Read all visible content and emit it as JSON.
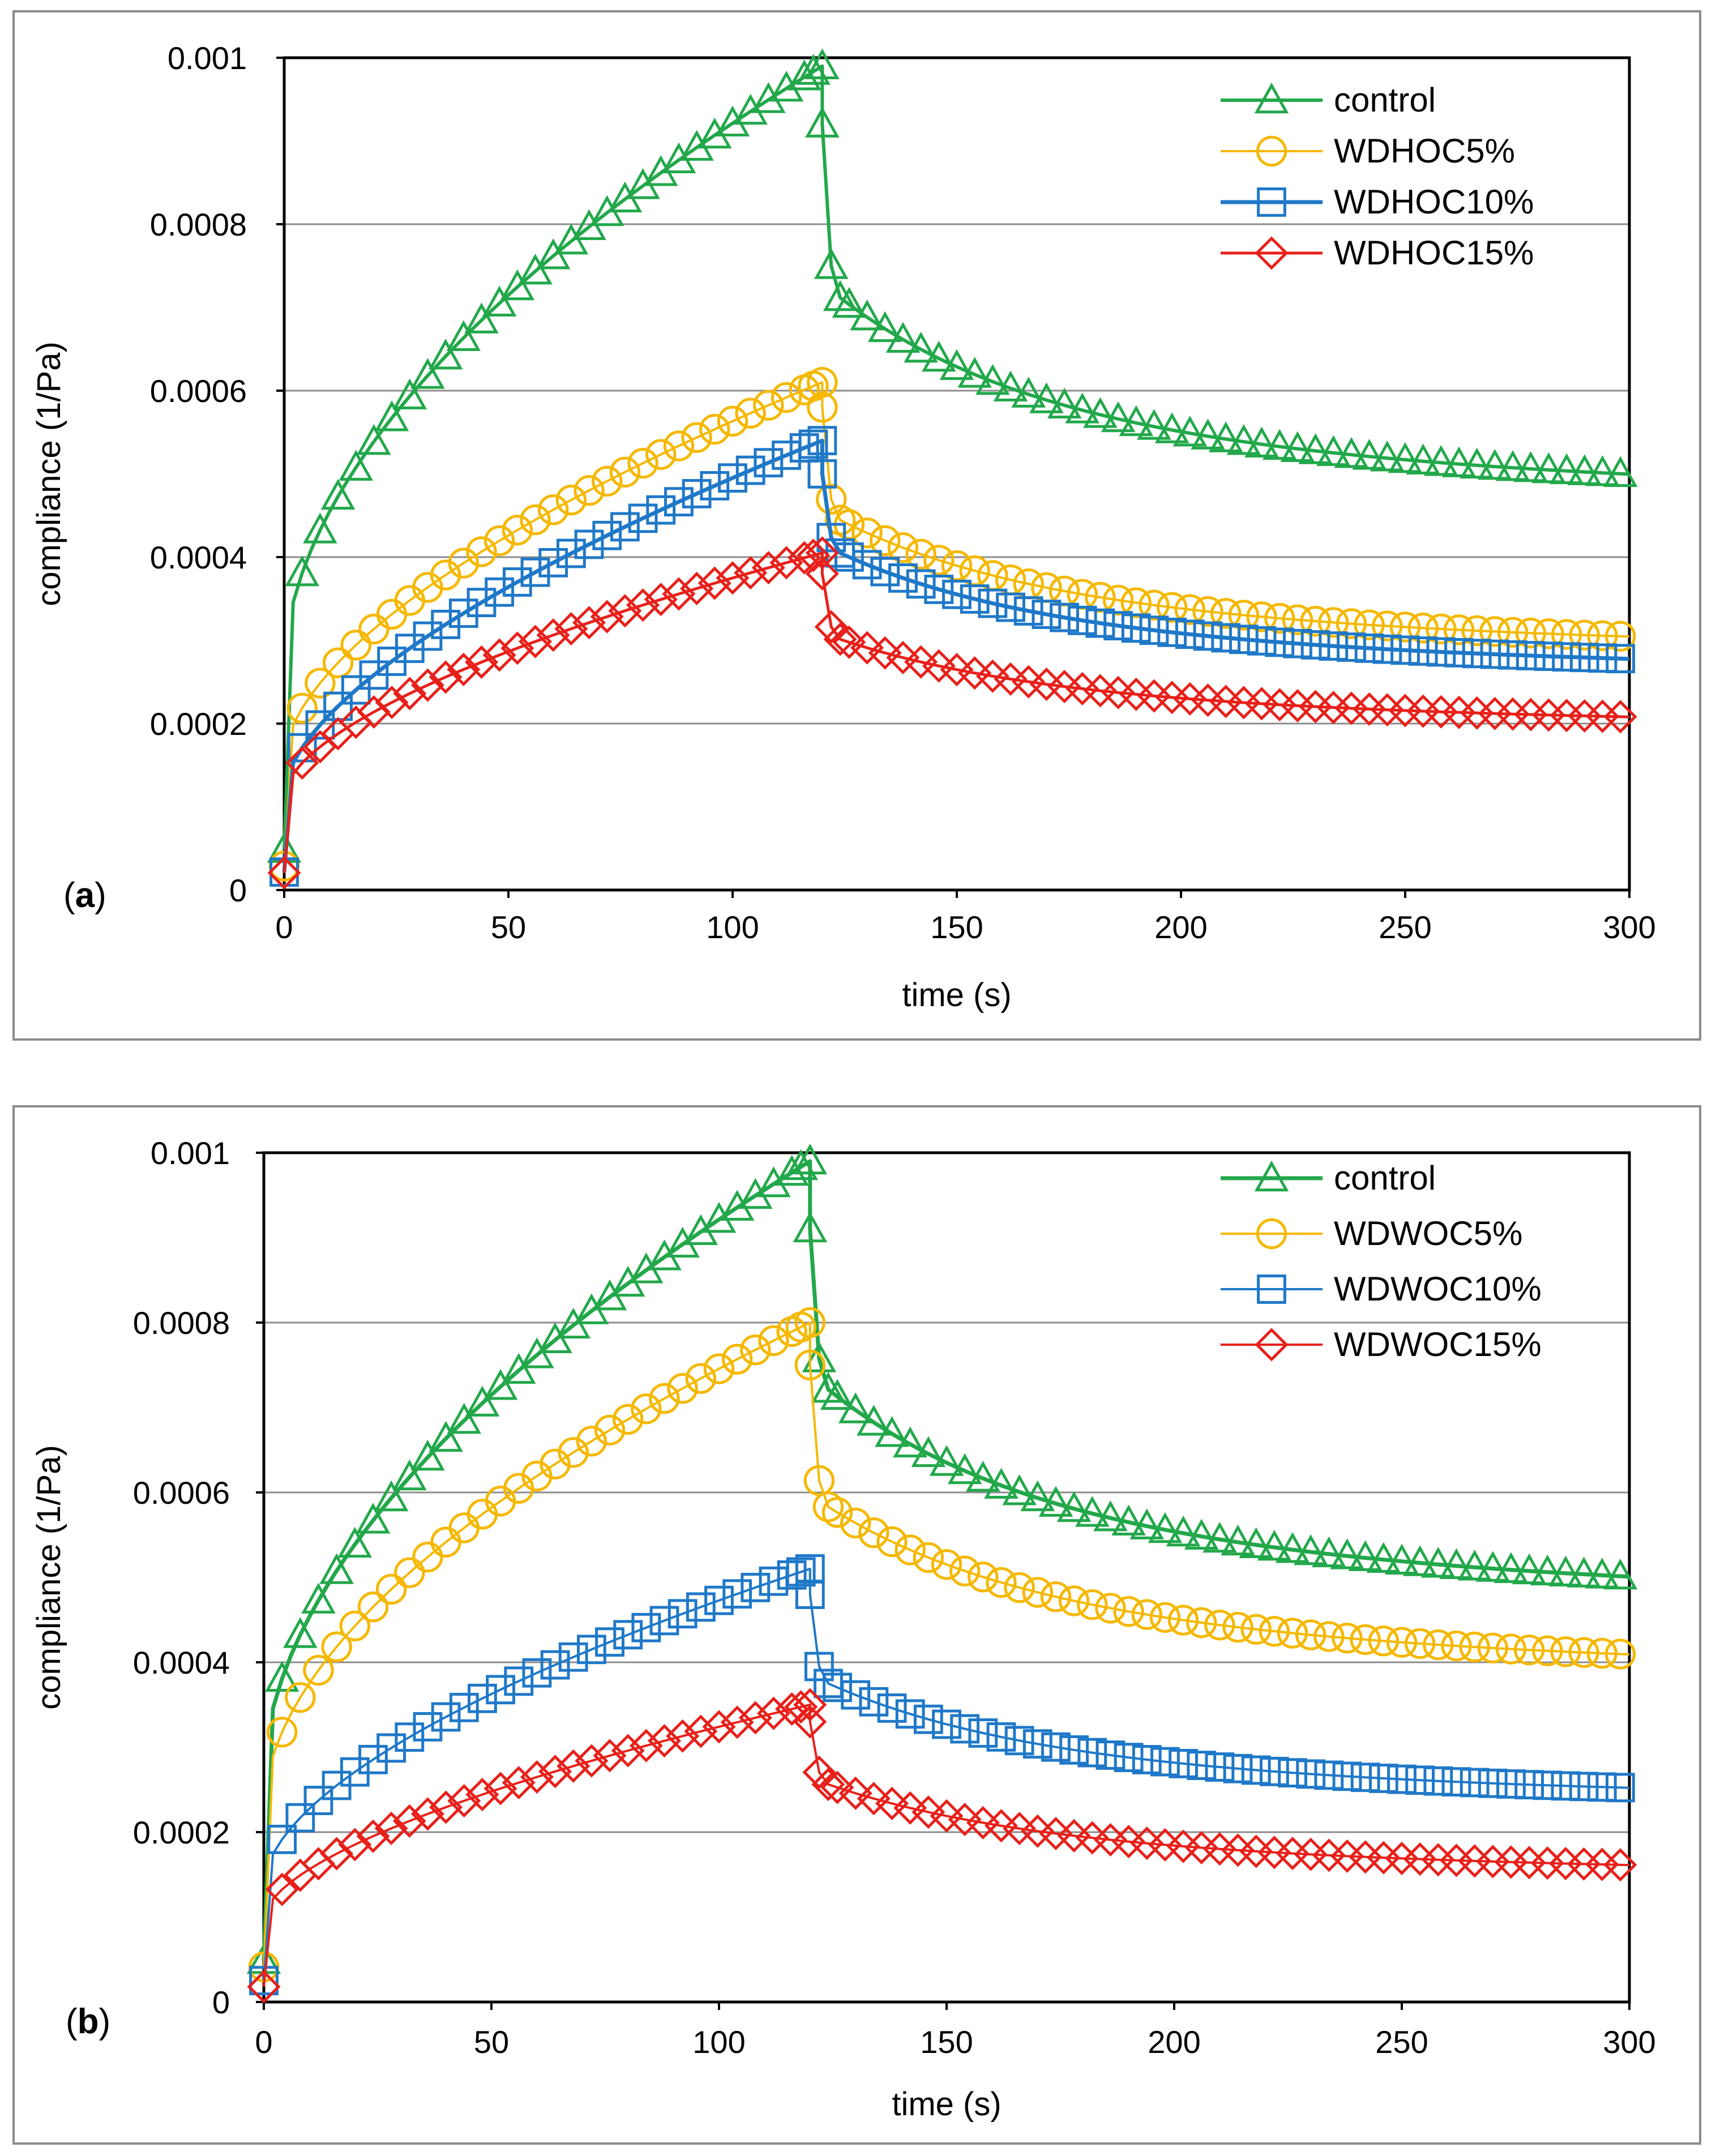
{
  "chart_data": [
    {
      "type": "line",
      "panel_label": "a",
      "xlabel": "time (s)",
      "ylabel": "compliance (1/Pa)",
      "xlim": [
        0,
        300
      ],
      "ylim": [
        0,
        0.001
      ],
      "x_ticks": [
        "0",
        "50",
        "100",
        "150",
        "200",
        "250",
        "300"
      ],
      "y_ticks": [
        "0",
        "0.0002",
        "0.0004",
        "0.0006",
        "0.0008",
        "0.001"
      ],
      "grid": "horizontal",
      "legend_position": "top-right",
      "series": [
        {
          "name": "control",
          "color": "#22a84a",
          "marker": "triangle",
          "line_width": 6,
          "creep": {
            "j0": 0.00027,
            "jend": 0.00099,
            "shape": 0.55
          },
          "recovery": {
            "jstart": 0.00092,
            "drop": 0.00072,
            "jend": 0.00047,
            "tau": 40
          }
        },
        {
          "name": "WDHOC5%",
          "color": "#f5b800",
          "marker": "circle",
          "line_width": 4,
          "creep": {
            "j0": 0.00016,
            "jend": 0.00061,
            "shape": 0.6
          },
          "recovery": {
            "jstart": 0.00058,
            "drop": 0.00045,
            "jend": 0.000285,
            "tau": 40
          }
        },
        {
          "name": "WDHOC10%",
          "color": "#1f78c8",
          "marker": "square",
          "line_width": 7,
          "creep": {
            "j0": 0.00012,
            "jend": 0.00054,
            "shape": 0.62
          },
          "recovery": {
            "jstart": 0.0005,
            "drop": 0.00041,
            "jend": 0.00026,
            "tau": 40
          }
        },
        {
          "name": "WDHOC15%",
          "color": "#e8201a",
          "marker": "diamond",
          "line_width": 5,
          "creep": {
            "j0": 0.000115,
            "jend": 0.000405,
            "shape": 0.6
          },
          "recovery": {
            "jstart": 0.00038,
            "drop": 0.000305,
            "jend": 0.000195,
            "tau": 40
          }
        }
      ]
    },
    {
      "type": "line",
      "panel_label": "b",
      "xlabel": "time (s)",
      "ylabel": "compliance (1/Pa)",
      "xlim": [
        0,
        300
      ],
      "ylim": [
        0,
        0.001
      ],
      "x_ticks": [
        "0",
        "50",
        "100",
        "150",
        "200",
        "250",
        "300"
      ],
      "y_ticks": [
        "0",
        "0.0002",
        "0.0004",
        "0.0006",
        "0.0008",
        "0.001"
      ],
      "grid": "horizontal",
      "legend_position": "top-right",
      "series": [
        {
          "name": "control",
          "color": "#22a84a",
          "marker": "triangle",
          "line_width": 7,
          "creep": {
            "j0": 0.00027,
            "jend": 0.00099,
            "shape": 0.55
          },
          "recovery": {
            "jstart": 0.00091,
            "drop": 0.00073,
            "jend": 0.00047,
            "tau": 40
          }
        },
        {
          "name": "WDWOC5%",
          "color": "#f5b800",
          "marker": "circle",
          "line_width": 4,
          "creep": {
            "j0": 0.00023,
            "jend": 0.0008,
            "shape": 0.55
          },
          "recovery": {
            "jstart": 0.00075,
            "drop": 0.00059,
            "jend": 0.000385,
            "tau": 40
          }
        },
        {
          "name": "WDWOC10%",
          "color": "#1f78c8",
          "marker": "square",
          "line_width": 4,
          "creep": {
            "j0": 0.00014,
            "jend": 0.00051,
            "shape": 0.58
          },
          "recovery": {
            "jstart": 0.00048,
            "drop": 0.00038,
            "jend": 0.000235,
            "tau": 40
          }
        },
        {
          "name": "WDWOC15%",
          "color": "#e8201a",
          "marker": "diamond",
          "line_width": 4,
          "creep": {
            "j0": 0.0001,
            "jend": 0.00035,
            "shape": 0.6
          },
          "recovery": {
            "jstart": 0.00033,
            "drop": 0.00026,
            "jend": 0.000148,
            "tau": 40
          }
        }
      ]
    }
  ]
}
